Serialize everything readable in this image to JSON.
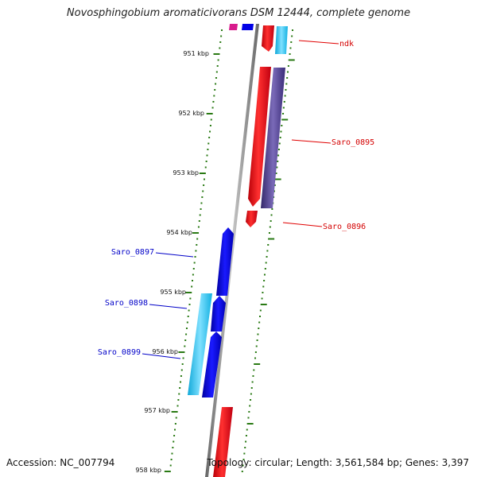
{
  "title": "Novosphingobium aromaticivorans DSM 12444, complete genome",
  "scale_labels": [
    "951 kbp",
    "952 kbp",
    "953 kbp",
    "954 kbp",
    "955 kbp",
    "956 kbp",
    "957 kbp",
    "958 kbp"
  ],
  "genes": {
    "ndk": "ndk",
    "saro_0895": "Saro_0895",
    "saro_0896": "Saro_0896",
    "saro_0897": "Saro_0897",
    "saro_0898": "Saro_0898",
    "saro_0899": "Saro_0899"
  },
  "footer": {
    "accession": "Accession: NC_007794",
    "stats": "Topology: circular; Length: 3,561,584 bp; Genes: 3,397"
  },
  "colors": {
    "forward_gene": "#e8000b",
    "reverse_gene": "#0000e6",
    "cyan_gene": "#19c4f0",
    "purple_gene": "#4a3a8c",
    "tick_green": "#2a7a14",
    "backbone": "#8c8c8c"
  }
}
